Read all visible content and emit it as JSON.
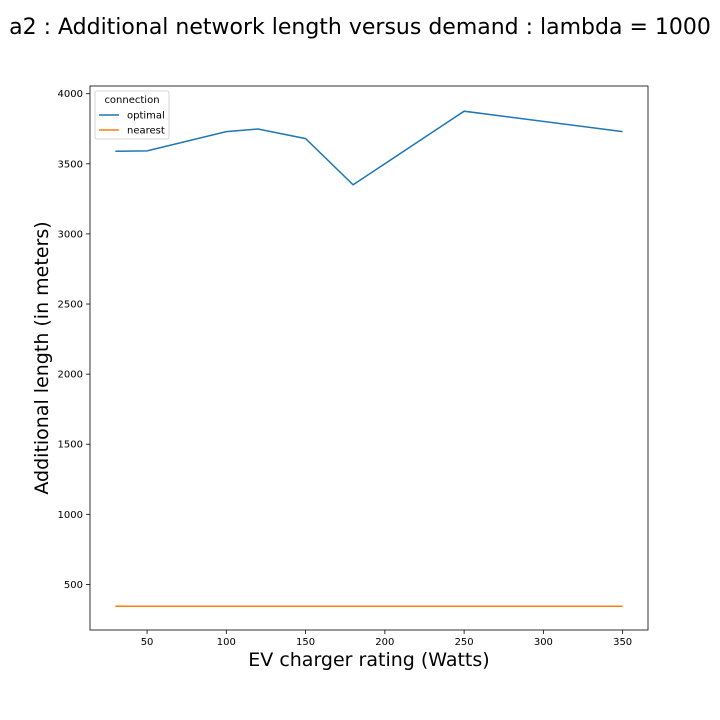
{
  "chart_data": {
    "type": "line",
    "title": "a2 : Additional network length versus demand : lambda = 1000",
    "xlabel": "EV charger rating (Watts)",
    "ylabel": "Additional length (in meters)",
    "xlim": [
      14,
      366
    ],
    "ylim": [
      175,
      4055
    ],
    "xticks": [
      50,
      100,
      150,
      200,
      250,
      300,
      350
    ],
    "yticks": [
      500,
      1000,
      1500,
      2000,
      2500,
      3000,
      3500,
      4000
    ],
    "legend": {
      "title": "connection",
      "position": "upper-left"
    },
    "series": [
      {
        "name": "optimal",
        "color": "#1f77b4",
        "x": [
          30,
          50,
          100,
          120,
          150,
          180,
          250,
          350
        ],
        "y": [
          3590,
          3592,
          3730,
          3748,
          3680,
          3350,
          3875,
          3730
        ]
      },
      {
        "name": "nearest",
        "color": "#ff7f0e",
        "x": [
          30,
          50,
          100,
          120,
          150,
          180,
          250,
          350
        ],
        "y": [
          345,
          345,
          345,
          345,
          345,
          345,
          345,
          345
        ]
      }
    ]
  }
}
